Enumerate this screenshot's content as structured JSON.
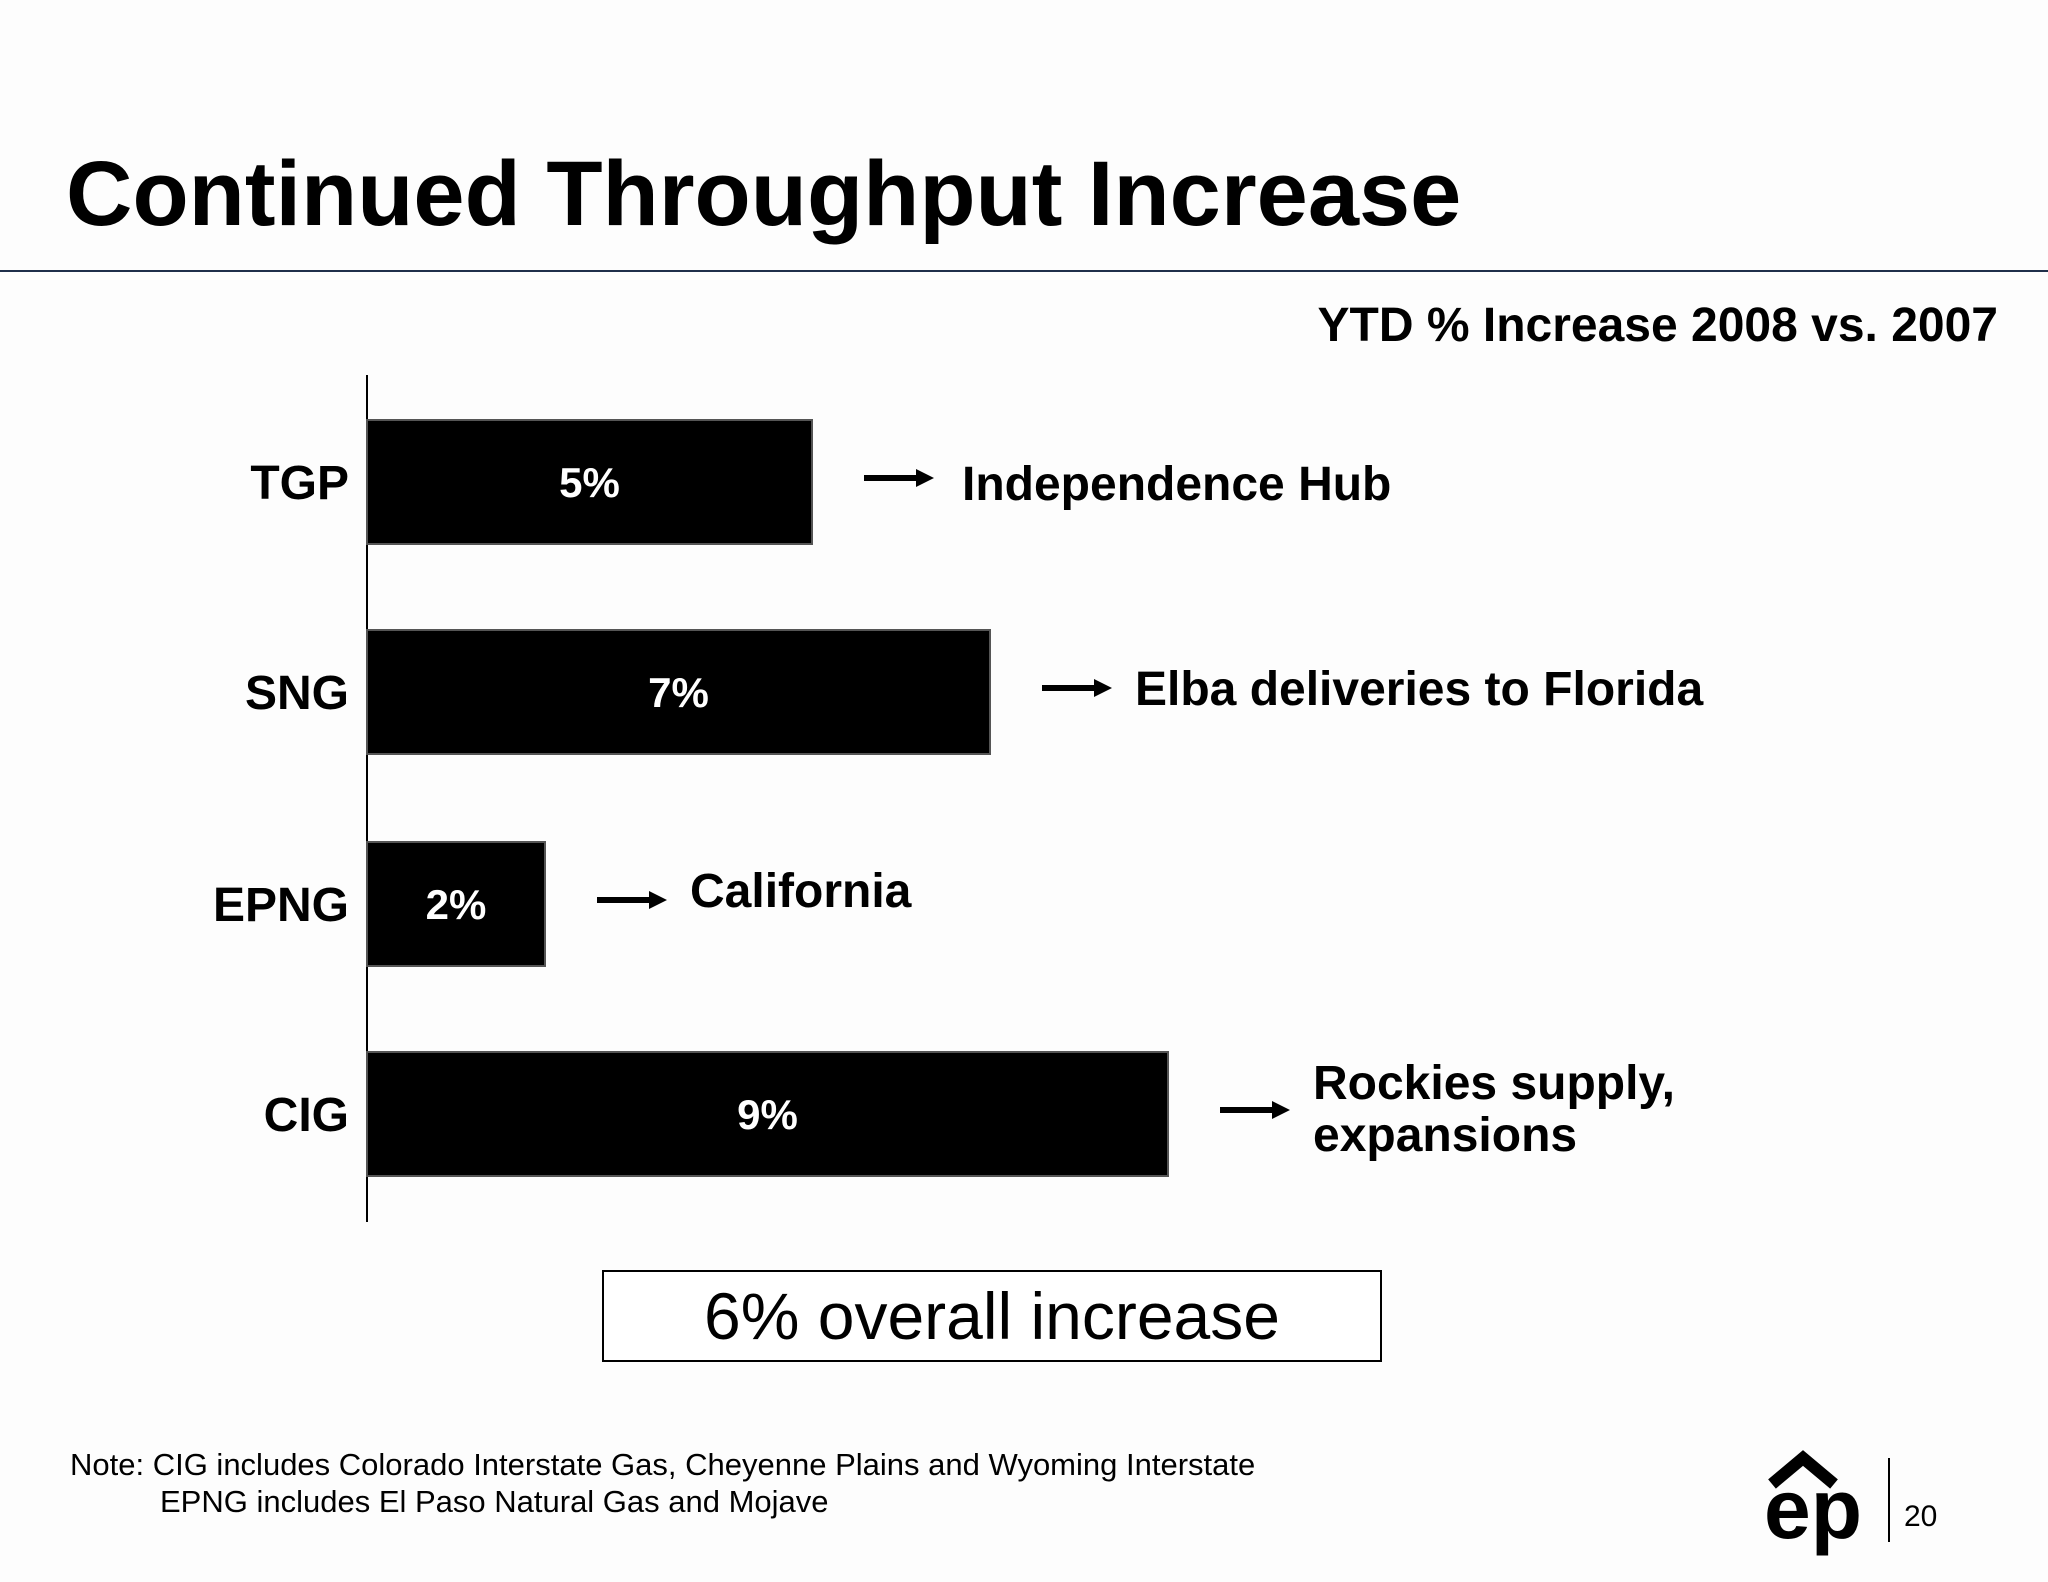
{
  "slide": {
    "title": "Continued Throughput Increase",
    "subtitle": "YTD % Increase 2008 vs. 2007",
    "overall": "6% overall increase",
    "note": {
      "line1": "Note: CIG includes Colorado Interstate Gas, Cheyenne Plains and Wyoming Interstate",
      "line2": "EPNG includes El Paso Natural Gas and Mojave"
    },
    "page_number": "20",
    "logo": {
      "text": "ep",
      "icon": "ep-logo-icon"
    }
  },
  "callouts": [
    {
      "category": "TGP",
      "text": "Independence Hub"
    },
    {
      "category": "SNG",
      "text": "Elba deliveries to Florida"
    },
    {
      "category": "EPNG",
      "text": "California"
    },
    {
      "category": "CIG",
      "text": "Rockies supply,",
      "text2": "expansions"
    }
  ],
  "chart_data": {
    "type": "bar",
    "orientation": "horizontal",
    "title": "YTD % Increase 2008 vs. 2007",
    "categories": [
      "TGP",
      "SNG",
      "EPNG",
      "CIG"
    ],
    "values": [
      5,
      7,
      2,
      9
    ],
    "data_labels": [
      "5%",
      "7%",
      "2%",
      "9%"
    ],
    "unit": "%",
    "xlim": [
      0,
      11
    ],
    "xlabel": "",
    "ylabel": "",
    "grid": false,
    "bar_color": "#000000",
    "label_color": "#ffffff"
  }
}
